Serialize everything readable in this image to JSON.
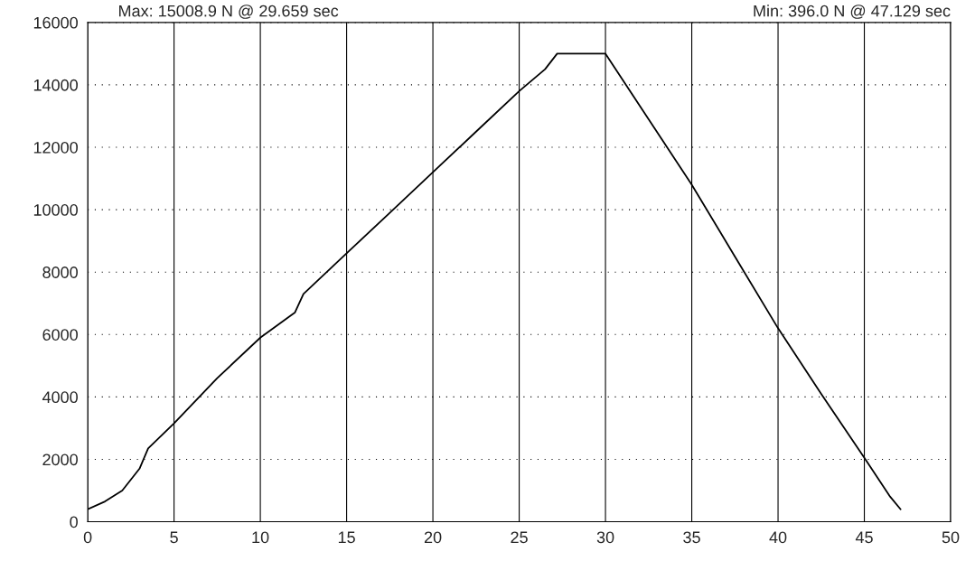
{
  "chart_data": {
    "type": "line",
    "x": [
      0,
      1,
      2,
      3,
      3.5,
      5,
      7.5,
      10,
      12,
      12.5,
      15,
      17.5,
      20,
      22.5,
      25,
      26.5,
      27.2,
      30,
      32.5,
      35,
      37.5,
      40,
      42.5,
      45,
      46.5,
      47.1
    ],
    "series": [
      {
        "color": "#000000",
        "values": [
          400,
          650,
          1000,
          1700,
          2350,
          3150,
          4600,
          5900,
          6700,
          7300,
          8600,
          9900,
          11200,
          12500,
          13800,
          14500,
          15000,
          15000,
          12900,
          10800,
          8500,
          6200,
          4100,
          2050,
          800,
          400
        ]
      }
    ],
    "xlim": [
      0,
      50
    ],
    "xticks": [
      0,
      5,
      10,
      15,
      20,
      25,
      30,
      35,
      40,
      45,
      50
    ],
    "ylim": [
      0,
      16000
    ],
    "yticks": [
      0,
      2000,
      4000,
      6000,
      8000,
      10000,
      12000,
      14000,
      16000
    ],
    "grid": true,
    "annotations": [
      "Max: 15008.9 N @ 29.659 sec",
      "Min: 396.0 N @ 47.129 sec"
    ]
  }
}
